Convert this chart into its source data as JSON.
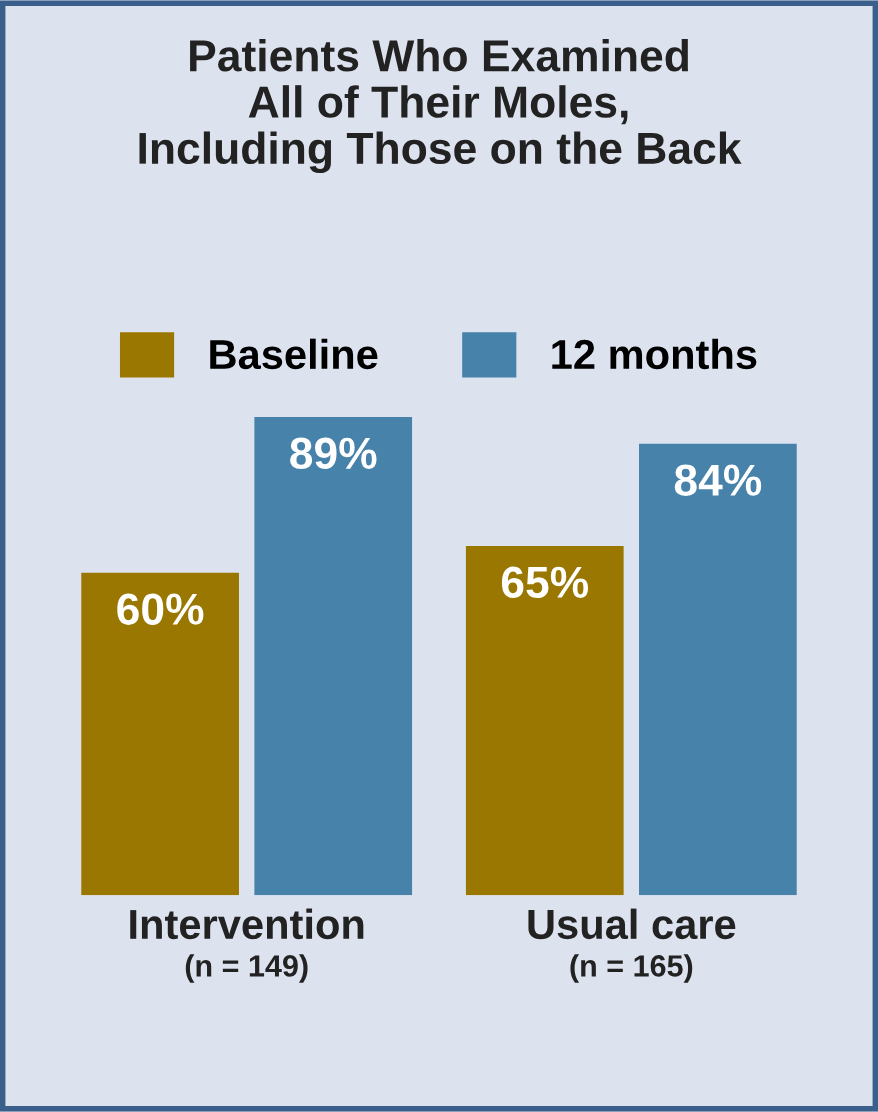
{
  "chart_data": {
    "type": "bar",
    "title": "Patients Who Examined\nAll of Their Moles,\nIncluding Those on the Back",
    "categories": [
      "Intervention\n(n = 149)",
      "Usual care\n(n = 165)"
    ],
    "series": [
      {
        "name": "Baseline",
        "color": "#9a7700",
        "values": [
          60,
          65
        ],
        "value_labels": [
          "60%",
          "65%"
        ]
      },
      {
        "name": "12 months",
        "color": "#4682aa",
        "values": [
          89,
          84
        ],
        "value_labels": [
          "89%",
          "84%"
        ]
      }
    ],
    "legend": "top",
    "grid": false
  }
}
